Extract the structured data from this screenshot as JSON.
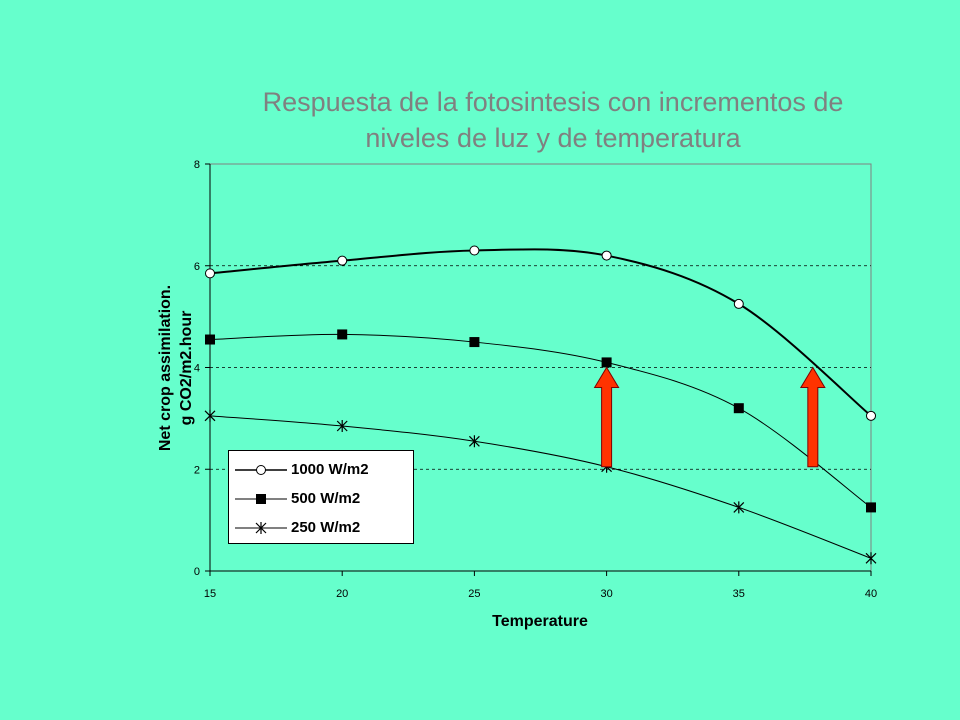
{
  "chart_data": {
    "type": "line",
    "title_lines": [
      "Respuesta de la  fotosintesis con incrementos de",
      "niveles de luz y de temperatura"
    ],
    "xlabel": "Temperature",
    "ylabel_lines": [
      "Net crop assimilation.",
      "g CO2/m2.hour"
    ],
    "x": [
      15,
      20,
      25,
      30,
      35,
      40
    ],
    "xlim": [
      15,
      40
    ],
    "ylim": [
      0,
      8
    ],
    "x_ticks": [
      "15",
      "20",
      "25",
      "30",
      "35",
      "40"
    ],
    "y_ticks": [
      "0",
      "2",
      "4",
      "6",
      "8"
    ],
    "grid": "horizontal dashed",
    "legend_position": "bottom-left",
    "series": [
      {
        "name": "1000 W/m2",
        "marker": "open-circle",
        "values": [
          5.85,
          6.1,
          6.3,
          6.2,
          5.25,
          3.05
        ]
      },
      {
        "name": "500 W/m2",
        "marker": "filled-square",
        "values": [
          4.55,
          4.65,
          4.5,
          4.1,
          3.2,
          1.25
        ]
      },
      {
        "name": "250 W/m2",
        "marker": "star",
        "values": [
          3.05,
          2.85,
          2.55,
          2.05,
          1.25,
          0.25
        ]
      }
    ],
    "annotations": [
      {
        "type": "arrow",
        "color": "#ff3300",
        "x": 30,
        "y_from": 2.05,
        "y_to": 4.0
      },
      {
        "type": "arrow",
        "color": "#ff3300",
        "x": 37.8,
        "y_from": 2.05,
        "y_to": 4.0
      }
    ]
  },
  "colors": {
    "background": "#66ffcc",
    "plot_background": "#66ffcc",
    "title": "#808080",
    "arrow_fill": "#ff3300",
    "arrow_stroke": "#800000"
  }
}
